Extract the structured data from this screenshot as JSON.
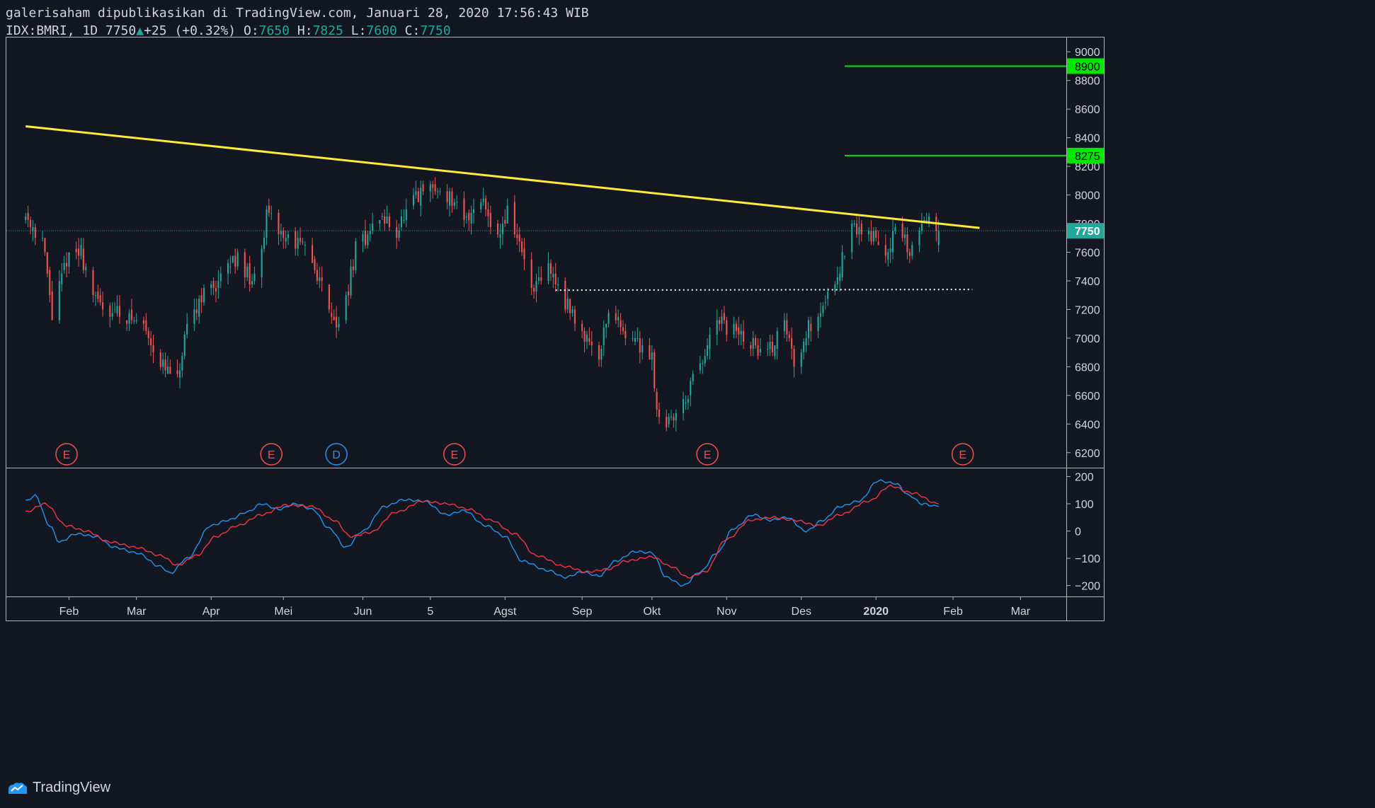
{
  "header": {
    "line1": "galerisaham dipublikasikan di TradingView.com, Januari 28, 2020 17:56:43 WIB",
    "symbol": "IDX:BMRI, 1D",
    "last": "7750",
    "change": "+25 (+0.32%)",
    "o_label": "O:",
    "o_value": "7650",
    "h_label": "H:",
    "h_value": "7825",
    "l_label": "L:",
    "l_value": "7600",
    "c_label": "C:",
    "c_value": "7750"
  },
  "brand": {
    "name": "TradingView"
  },
  "colors": {
    "background": "#131722",
    "up": "#26a69a",
    "down": "#ef5350",
    "trendline": "#ffeb3b",
    "level": "#00e600",
    "macd": "#2196f3",
    "signal": "#f23645",
    "earnings": "#ef5350",
    "dividend": "#2196f3",
    "text": "#d1d4dc"
  },
  "chart_data": [
    {
      "type": "candlestick",
      "symbol": "IDX:BMRI",
      "interval": "1D",
      "ylim": [
        6100,
        9100
      ],
      "y_ticks": [
        6200,
        6400,
        6600,
        6800,
        7000,
        7200,
        7400,
        7600,
        7800,
        8000,
        8200,
        8400,
        8600,
        8800,
        9000
      ],
      "x_tick_labels": [
        "Feb",
        "Mar",
        "Apr",
        "Mei",
        "Jun",
        "5",
        "Agst",
        "Sep",
        "Okt",
        "Nov",
        "Des",
        "2020",
        "Feb",
        "Mar"
      ],
      "x_ticks": [
        "2019-02-01",
        "2019-03-01",
        "2019-04-01",
        "2019-05-01",
        "2019-06-03",
        "2019-07-01",
        "2019-08-01",
        "2019-09-02",
        "2019-10-01",
        "2019-11-01",
        "2019-12-02",
        "2020-01-02",
        "2020-02-03",
        "2020-03-02"
      ],
      "price_path": [
        [
          "2019-01-14",
          7850
        ],
        [
          "2019-01-21",
          7700
        ],
        [
          "2019-01-25",
          7150
        ],
        [
          "2019-01-31",
          7550
        ],
        [
          "2019-02-06",
          7600
        ],
        [
          "2019-02-12",
          7250
        ],
        [
          "2019-02-19",
          7200
        ],
        [
          "2019-02-25",
          7150
        ],
        [
          "2019-03-04",
          7100
        ],
        [
          "2019-03-12",
          6800
        ],
        [
          "2019-03-18",
          6700
        ],
        [
          "2019-03-22",
          7050
        ],
        [
          "2019-03-28",
          7300
        ],
        [
          "2019-04-05",
          7400
        ],
        [
          "2019-04-12",
          7600
        ],
        [
          "2019-04-18",
          7350
        ],
        [
          "2019-04-24",
          7850
        ],
        [
          "2019-05-02",
          7700
        ],
        [
          "2019-05-08",
          7650
        ],
        [
          "2019-05-14",
          7500
        ],
        [
          "2019-05-21",
          7200
        ],
        [
          "2019-05-24",
          7050
        ],
        [
          "2019-05-31",
          7600
        ],
        [
          "2019-06-10",
          7850
        ],
        [
          "2019-06-17",
          7750
        ],
        [
          "2019-06-24",
          7950
        ],
        [
          "2019-07-01",
          8050
        ],
        [
          "2019-07-08",
          8000
        ],
        [
          "2019-07-15",
          7800
        ],
        [
          "2019-07-22",
          8000
        ],
        [
          "2019-07-29",
          7700
        ],
        [
          "2019-08-02",
          7900
        ],
        [
          "2019-08-07",
          7650
        ],
        [
          "2019-08-13",
          7300
        ],
        [
          "2019-08-19",
          7500
        ],
        [
          "2019-08-26",
          7250
        ],
        [
          "2019-09-02",
          7050
        ],
        [
          "2019-09-09",
          6900
        ],
        [
          "2019-09-13",
          7200
        ],
        [
          "2019-09-20",
          7050
        ],
        [
          "2019-09-26",
          6950
        ],
        [
          "2019-10-01",
          6900
        ],
        [
          "2019-10-03",
          6500
        ],
        [
          "2019-10-08",
          6400
        ],
        [
          "2019-10-14",
          6550
        ],
        [
          "2019-10-21",
          6800
        ],
        [
          "2019-10-28",
          7100
        ],
        [
          "2019-11-04",
          7050
        ],
        [
          "2019-11-11",
          6950
        ],
        [
          "2019-11-18",
          6900
        ],
        [
          "2019-11-25",
          7100
        ],
        [
          "2019-11-29",
          6850
        ],
        [
          "2019-12-04",
          7050
        ],
        [
          "2019-12-10",
          7200
        ],
        [
          "2019-12-17",
          7450
        ],
        [
          "2019-12-23",
          7750
        ],
        [
          "2019-12-30",
          7750
        ],
        [
          "2020-01-06",
          7600
        ],
        [
          "2020-01-10",
          7750
        ],
        [
          "2020-01-16",
          7600
        ],
        [
          "2020-01-21",
          7800
        ],
        [
          "2020-01-24",
          7900
        ],
        [
          "2020-01-28",
          7750
        ]
      ],
      "last_price": 7750,
      "trendline": {
        "start": [
          "2019-01-14",
          8480
        ],
        "end": [
          "2020-02-14",
          7770
        ]
      },
      "support_line": {
        "start": [
          "2019-08-22",
          7335
        ],
        "end": [
          "2020-02-11",
          7340
        ],
        "style": "dotted"
      },
      "horizontal_levels": [
        8900,
        8275
      ],
      "events": [
        {
          "label": "E",
          "date": "2019-01-31",
          "kind": "earnings"
        },
        {
          "label": "E",
          "date": "2019-04-26",
          "kind": "earnings"
        },
        {
          "label": "D",
          "date": "2019-05-23",
          "kind": "dividend"
        },
        {
          "label": "E",
          "date": "2019-07-11",
          "kind": "earnings"
        },
        {
          "label": "E",
          "date": "2019-10-24",
          "kind": "earnings"
        },
        {
          "label": "E",
          "date": "2020-02-07",
          "kind": "earnings"
        }
      ]
    },
    {
      "type": "line",
      "ylim": [
        -240,
        230
      ],
      "y_ticks": [
        200,
        100,
        0,
        -100,
        -200
      ],
      "series": [
        {
          "color": "#2196f3",
          "points": [
            [
              "2019-01-14",
              110
            ],
            [
              "2019-01-18",
              130
            ],
            [
              "2019-01-24",
              20
            ],
            [
              "2019-01-28",
              -40
            ],
            [
              "2019-02-04",
              -10
            ],
            [
              "2019-02-12",
              -20
            ],
            [
              "2019-02-20",
              -60
            ],
            [
              "2019-03-01",
              -80
            ],
            [
              "2019-03-11",
              -130
            ],
            [
              "2019-03-15",
              -155
            ],
            [
              "2019-03-22",
              -100
            ],
            [
              "2019-04-01",
              20
            ],
            [
              "2019-04-08",
              40
            ],
            [
              "2019-04-16",
              70
            ],
            [
              "2019-04-22",
              100
            ],
            [
              "2019-04-29",
              80
            ],
            [
              "2019-05-06",
              100
            ],
            [
              "2019-05-13",
              80
            ],
            [
              "2019-05-20",
              10
            ],
            [
              "2019-05-27",
              -60
            ],
            [
              "2019-06-03",
              0
            ],
            [
              "2019-06-12",
              90
            ],
            [
              "2019-06-20",
              115
            ],
            [
              "2019-06-28",
              110
            ],
            [
              "2019-07-08",
              60
            ],
            [
              "2019-07-15",
              75
            ],
            [
              "2019-07-24",
              20
            ],
            [
              "2019-08-01",
              -20
            ],
            [
              "2019-08-08",
              -110
            ],
            [
              "2019-08-19",
              -145
            ],
            [
              "2019-08-26",
              -170
            ],
            [
              "2019-09-02",
              -150
            ],
            [
              "2019-09-09",
              -165
            ],
            [
              "2019-09-16",
              -110
            ],
            [
              "2019-09-24",
              -75
            ],
            [
              "2019-10-01",
              -80
            ],
            [
              "2019-10-07",
              -170
            ],
            [
              "2019-10-14",
              -200
            ],
            [
              "2019-10-21",
              -150
            ],
            [
              "2019-10-28",
              -80
            ],
            [
              "2019-11-04",
              10
            ],
            [
              "2019-11-12",
              60
            ],
            [
              "2019-11-19",
              40
            ],
            [
              "2019-11-26",
              50
            ],
            [
              "2019-12-04",
              0
            ],
            [
              "2019-12-11",
              40
            ],
            [
              "2019-12-18",
              90
            ],
            [
              "2019-12-26",
              110
            ],
            [
              "2020-01-03",
              185
            ],
            [
              "2020-01-10",
              175
            ],
            [
              "2020-01-16",
              130
            ],
            [
              "2020-01-21",
              100
            ],
            [
              "2020-01-28",
              90
            ]
          ]
        },
        {
          "color": "#f23645",
          "points": [
            [
              "2019-01-14",
              70
            ],
            [
              "2019-01-22",
              100
            ],
            [
              "2019-01-31",
              20
            ],
            [
              "2019-02-08",
              0
            ],
            [
              "2019-02-18",
              -40
            ],
            [
              "2019-03-01",
              -60
            ],
            [
              "2019-03-11",
              -90
            ],
            [
              "2019-03-18",
              -125
            ],
            [
              "2019-03-26",
              -90
            ],
            [
              "2019-04-03",
              -20
            ],
            [
              "2019-04-12",
              20
            ],
            [
              "2019-04-22",
              60
            ],
            [
              "2019-05-02",
              95
            ],
            [
              "2019-05-13",
              90
            ],
            [
              "2019-05-22",
              40
            ],
            [
              "2019-05-29",
              -20
            ],
            [
              "2019-06-06",
              -5
            ],
            [
              "2019-06-17",
              70
            ],
            [
              "2019-06-28",
              110
            ],
            [
              "2019-07-08",
              100
            ],
            [
              "2019-07-17",
              80
            ],
            [
              "2019-07-26",
              40
            ],
            [
              "2019-08-05",
              -10
            ],
            [
              "2019-08-14",
              -90
            ],
            [
              "2019-08-26",
              -130
            ],
            [
              "2019-09-04",
              -150
            ],
            [
              "2019-09-13",
              -140
            ],
            [
              "2019-09-20",
              -110
            ],
            [
              "2019-10-01",
              -95
            ],
            [
              "2019-10-09",
              -130
            ],
            [
              "2019-10-16",
              -170
            ],
            [
              "2019-10-23",
              -150
            ],
            [
              "2019-11-01",
              -30
            ],
            [
              "2019-11-11",
              40
            ],
            [
              "2019-11-20",
              50
            ],
            [
              "2019-11-29",
              40
            ],
            [
              "2019-12-09",
              20
            ],
            [
              "2019-12-18",
              60
            ],
            [
              "2019-12-30",
              110
            ],
            [
              "2020-01-08",
              165
            ],
            [
              "2020-01-17",
              140
            ],
            [
              "2020-01-28",
              100
            ]
          ]
        }
      ]
    }
  ]
}
